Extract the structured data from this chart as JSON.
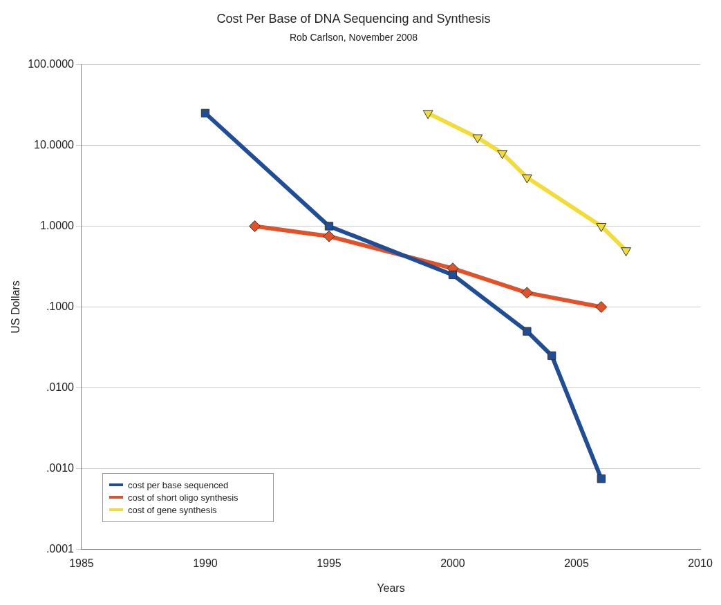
{
  "chart_data": {
    "type": "line",
    "title": "Cost Per Base of DNA Sequencing and Synthesis",
    "subtitle": "Rob Carlson, November 2008",
    "xlabel": "Years",
    "ylabel": "US Dollars",
    "log": "y",
    "grid": "y",
    "legend": "bottom left",
    "line_style": "solid",
    "xlim": [
      1985,
      2010
    ],
    "xticks": [
      1985,
      1990,
      1995,
      2000,
      2005,
      2010
    ],
    "ylim": [
      0.0001,
      100
    ],
    "yticks": [
      {
        "value": 0.0001,
        "label": ".0001"
      },
      {
        "value": 0.001,
        "label": ".0010"
      },
      {
        "value": 0.01,
        "label": ".0100"
      },
      {
        "value": 0.1,
        "label": ".1000"
      },
      {
        "value": 1,
        "label": "1.0000"
      },
      {
        "value": 10,
        "label": "10.0000"
      },
      {
        "value": 100,
        "label": "100.0000"
      }
    ],
    "series": [
      {
        "name": "cost per base sequenced",
        "color": "#1f4e96",
        "marker": "square",
        "x": [
          1990,
          1995,
          2000,
          2003,
          2004,
          2006
        ],
        "values": [
          25,
          1,
          0.25,
          0.05,
          0.025,
          0.00075
        ]
      },
      {
        "name": "cost of short oligo synthesis",
        "color": "#e0522a",
        "marker": "diamond",
        "x": [
          1992,
          1995,
          2000,
          2003,
          2006
        ],
        "values": [
          1,
          0.75,
          0.3,
          0.15,
          0.1
        ]
      },
      {
        "name": "cost of gene synthesis",
        "color": "#f2dc3a",
        "marker": "triangle",
        "x": [
          1999,
          2001,
          2002,
          2003,
          2006,
          2007
        ],
        "values": [
          25,
          12.5,
          8,
          4,
          1,
          0.5
        ]
      }
    ]
  }
}
